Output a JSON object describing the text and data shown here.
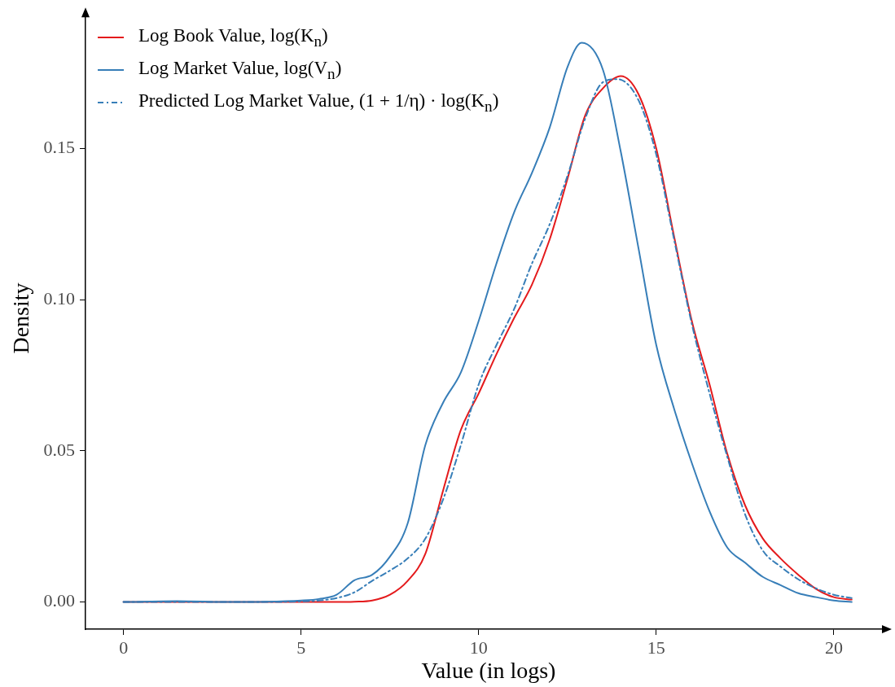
{
  "chart_data": {
    "type": "line",
    "xlabel": "Value (in logs)",
    "ylabel": "Density",
    "xlim": [
      -1.07,
      21.4
    ],
    "ylim": [
      -0.009,
      0.194
    ],
    "xticks": [
      0,
      5,
      10,
      15,
      20
    ],
    "yticks": [
      {
        "value": 0,
        "label": "0.00"
      },
      {
        "value": 0.05,
        "label": "0.05"
      },
      {
        "value": 0.1,
        "label": "0.10"
      },
      {
        "value": 0.15,
        "label": "0.15"
      }
    ],
    "grid": false,
    "legend": "top left",
    "marker": "none",
    "series": [
      {
        "name": "Log Book Value, log(K$_{n}$)",
        "color": "#e41a1c",
        "line_style": "solid",
        "x": [
          0,
          1,
          2,
          3,
          4,
          5,
          6,
          6.5,
          7,
          7.5,
          8,
          8.5,
          9,
          9.5,
          10,
          10.5,
          11,
          11.5,
          12,
          12.5,
          13,
          13.5,
          14,
          14.5,
          15,
          15.5,
          16,
          16.5,
          17,
          17.5,
          18,
          18.5,
          19,
          19.5,
          20,
          20.5
        ],
        "values": [
          0,
          0,
          0,
          0,
          0,
          0,
          0,
          0.0001,
          0.0005,
          0.0024,
          0.007,
          0.016,
          0.037,
          0.057,
          0.069,
          0.082,
          0.094,
          0.105,
          0.12,
          0.14,
          0.161,
          0.17,
          0.174,
          0.168,
          0.15,
          0.121,
          0.093,
          0.072,
          0.049,
          0.032,
          0.021,
          0.0144,
          0.009,
          0.0043,
          0.0016,
          0.0008
        ]
      },
      {
        "name": "Log Market Value, log(V$_{n}$)",
        "color": "#377eb8",
        "line_style": "solid",
        "x": [
          0,
          1.5,
          3,
          4,
          5,
          5.5,
          6,
          6.5,
          7,
          7.5,
          8,
          8.5,
          9,
          9.5,
          10,
          10.5,
          11,
          11.5,
          12,
          12.5,
          12.9,
          13.5,
          14,
          14.5,
          15,
          15.5,
          16,
          16.5,
          17,
          17.5,
          18,
          18.5,
          19,
          19.5,
          20,
          20.5
        ],
        "values": [
          0,
          0.0003,
          0,
          0.0001,
          0.0005,
          0.001,
          0.0024,
          0.0072,
          0.009,
          0.015,
          0.026,
          0.052,
          0.066,
          0.076,
          0.093,
          0.112,
          0.129,
          0.142,
          0.157,
          0.177,
          0.185,
          0.176,
          0.149,
          0.117,
          0.085,
          0.064,
          0.046,
          0.03,
          0.018,
          0.013,
          0.0083,
          0.0056,
          0.0029,
          0.0016,
          0.0005,
          0
        ]
      },
      {
        "name": "Predicted Log Market Value, (1 + 1/η) · log(K$_{n}$)",
        "color": "#377eb8",
        "line_style": "dashdot",
        "x": [
          0,
          2,
          4,
          5,
          5.5,
          6,
          6.5,
          7,
          7.5,
          8,
          8.5,
          9,
          9.5,
          10,
          10.5,
          11,
          11.5,
          12,
          12.5,
          13,
          13.5,
          13.9,
          14.5,
          15,
          15.5,
          16,
          16.5,
          17,
          17.5,
          18,
          18.5,
          19,
          19.5,
          20,
          20.5
        ],
        "values": [
          0,
          0,
          0,
          0.0002,
          0.0005,
          0.0013,
          0.0032,
          0.007,
          0.0104,
          0.0144,
          0.021,
          0.034,
          0.052,
          0.072,
          0.085,
          0.097,
          0.112,
          0.125,
          0.141,
          0.16,
          0.172,
          0.173,
          0.166,
          0.148,
          0.12,
          0.092,
          0.069,
          0.048,
          0.029,
          0.017,
          0.0117,
          0.0075,
          0.0045,
          0.0024,
          0.0013
        ]
      }
    ]
  }
}
